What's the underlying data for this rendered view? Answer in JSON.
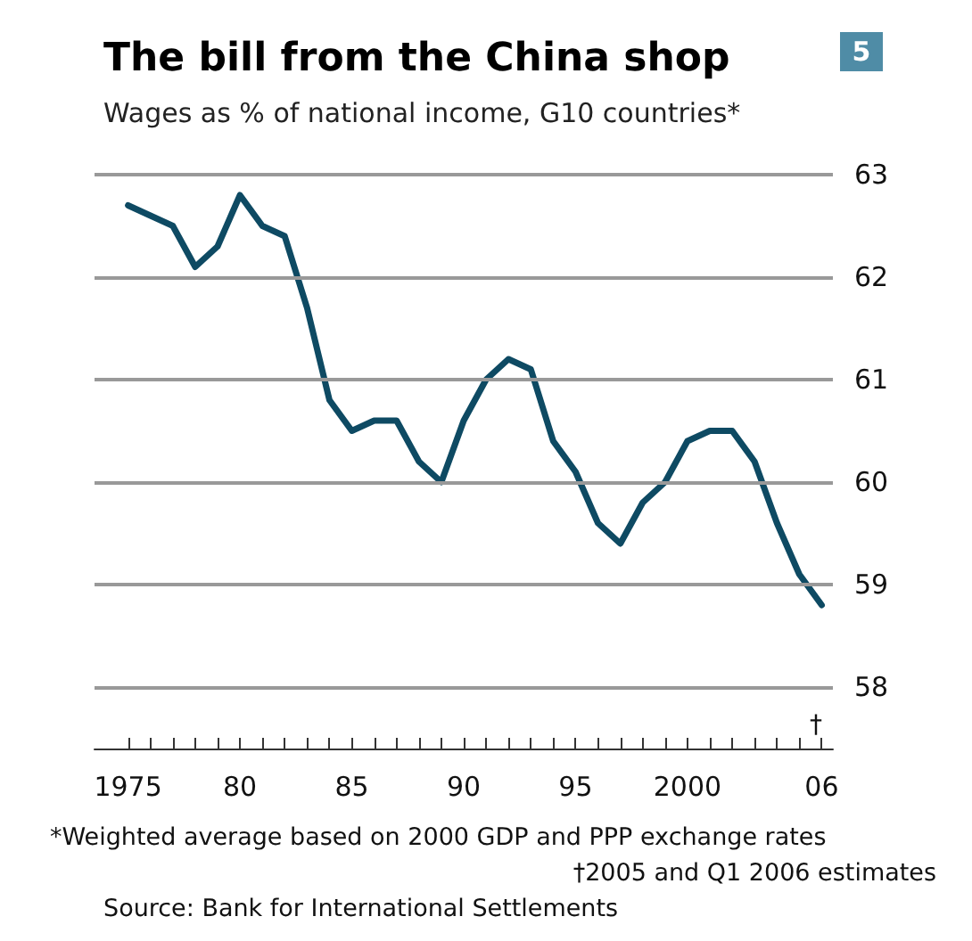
{
  "chart_data": {
    "type": "line",
    "title": "The bill from the China shop",
    "subtitle": "Wages as % of national income, G10 countries*",
    "x": [
      1975,
      1976,
      1977,
      1978,
      1979,
      1980,
      1981,
      1982,
      1983,
      1984,
      1985,
      1986,
      1987,
      1988,
      1989,
      1990,
      1991,
      1992,
      1993,
      1994,
      1995,
      1996,
      1997,
      1998,
      1999,
      2000,
      2001,
      2002,
      2003,
      2004,
      2005,
      2006
    ],
    "series": [
      {
        "color": "#0e4a63",
        "values": [
          62.7,
          62.6,
          62.5,
          62.1,
          62.3,
          62.8,
          62.5,
          62.4,
          61.7,
          60.8,
          60.5,
          60.6,
          60.6,
          60.2,
          60.0,
          60.6,
          61.0,
          61.2,
          61.1,
          60.4,
          60.1,
          59.6,
          59.4,
          59.8,
          60.0,
          60.4,
          60.5,
          60.5,
          60.2,
          59.6,
          59.1,
          58.8
        ]
      }
    ],
    "xlim": [
      1973.5,
      2006.5
    ],
    "xticks": [
      {
        "value": 1975,
        "label": "1975"
      },
      {
        "value": 1976,
        "label": null
      },
      {
        "value": 1977,
        "label": null
      },
      {
        "value": 1978,
        "label": null
      },
      {
        "value": 1979,
        "label": null
      },
      {
        "value": 1980,
        "label": "80"
      },
      {
        "value": 1981,
        "label": null
      },
      {
        "value": 1982,
        "label": null
      },
      {
        "value": 1983,
        "label": null
      },
      {
        "value": 1984,
        "label": null
      },
      {
        "value": 1985,
        "label": "85"
      },
      {
        "value": 1986,
        "label": null
      },
      {
        "value": 1987,
        "label": null
      },
      {
        "value": 1988,
        "label": null
      },
      {
        "value": 1989,
        "label": null
      },
      {
        "value": 1990,
        "label": "90"
      },
      {
        "value": 1991,
        "label": null
      },
      {
        "value": 1992,
        "label": null
      },
      {
        "value": 1993,
        "label": null
      },
      {
        "value": 1994,
        "label": null
      },
      {
        "value": 1995,
        "label": "95"
      },
      {
        "value": 1996,
        "label": null
      },
      {
        "value": 1997,
        "label": null
      },
      {
        "value": 1998,
        "label": null
      },
      {
        "value": 1999,
        "label": null
      },
      {
        "value": 2000,
        "label": "2000"
      },
      {
        "value": 2001,
        "label": null
      },
      {
        "value": 2002,
        "label": null
      },
      {
        "value": 2003,
        "label": null
      },
      {
        "value": 2004,
        "label": null
      },
      {
        "value": 2005,
        "label": null
      },
      {
        "value": 2006,
        "label": "06"
      }
    ],
    "ylim": [
      57.4,
      63
    ],
    "yticks": [
      58,
      59,
      60,
      61,
      62,
      63
    ],
    "grid": "y",
    "marker": "none",
    "line_style": "solid",
    "annotations": [
      "5",
      "†",
      "*Weighted average based on 2000 GDP and PPP exchange rates",
      "†2005 and Q1 2006 estimates",
      "Source: Bank for International Settlements"
    ]
  }
}
